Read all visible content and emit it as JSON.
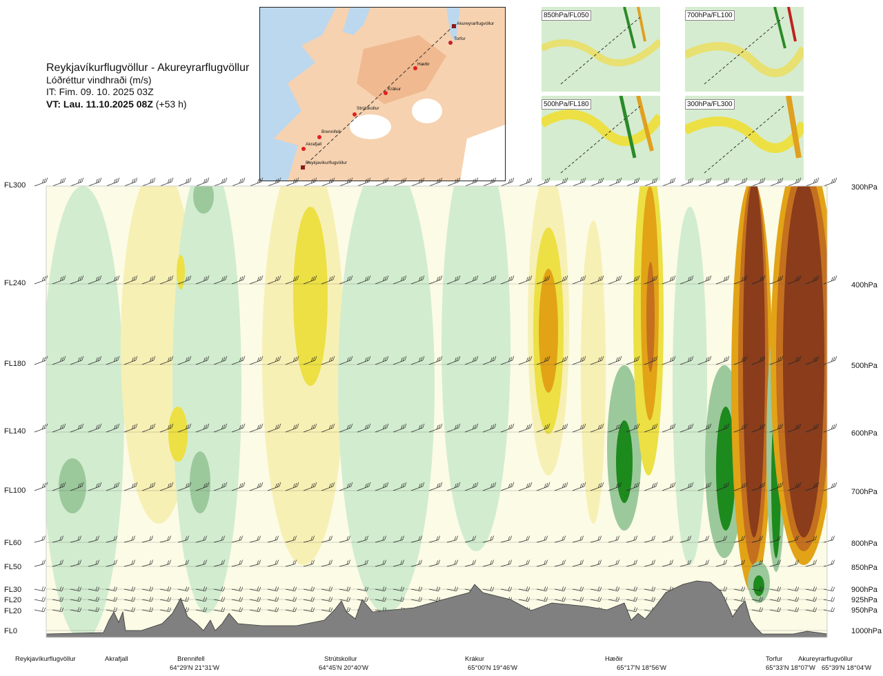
{
  "header": {
    "title": "Reykjavíkurflugvöllur - Akureyrarflugvöllur",
    "variable": "Lóðréttur vindhraði (m/s)",
    "issue_time": "IT: Fim. 09. 10. 2025 03Z",
    "valid_time": "VT: Lau. 11.10.2025 08Z",
    "lead": "(+53 h)"
  },
  "map": {
    "places": [
      "Akureyrarflugvöllur",
      "Torfur",
      "Hæðir",
      "Krákur",
      "Strútskollur",
      "Brennifell",
      "Akrafjall",
      "Reykjavíkurflugvöllur"
    ]
  },
  "thumbnails": [
    {
      "label": "850hPa/FL050"
    },
    {
      "label": "700hPa/FL100"
    },
    {
      "label": "500hPa/FL180"
    },
    {
      "label": "300hPa/FL300"
    }
  ],
  "chart_data": {
    "type": "heatmap",
    "title": "Reykjavíkurflugvöllur - Akureyrarflugvöllur",
    "variable": "Lóðréttur vindhraði (m/s)",
    "y_left_labels": [
      "FL300",
      "FL240",
      "FL180",
      "FL140",
      "FL100",
      "FL60",
      "FL50",
      "FL30",
      "FL20",
      "FL20",
      "FL0"
    ],
    "y_right_labels": [
      "300hPa",
      "400hPa",
      "500hPa",
      "600hPa",
      "700hPa",
      "800hPa",
      "850hPa",
      "900hPa",
      "925hPa",
      "950hPa",
      "1000hPa"
    ],
    "x_locations": [
      {
        "name": "Reykjavíkurflugvöllur",
        "coord": ""
      },
      {
        "name": "Akrafjall",
        "coord": ""
      },
      {
        "name": "Brennifell",
        "coord": "64°29'N 21°31'W"
      },
      {
        "name": "Strútskollur",
        "coord": "64°45'N 20°40'W"
      },
      {
        "name": "Krákur",
        "coord": "65°00'N 19°46'W"
      },
      {
        "name": "Hæðir",
        "coord": "65°17'N 18°56'W"
      },
      {
        "name": "Torfur",
        "coord": "65°33'N 18°07'W"
      },
      {
        "name": "Akureyrarflugvöllur",
        "coord": "65°39'N 18°04'W"
      }
    ],
    "colors": {
      "strong_down": "#1d8a1d",
      "down": "#9cc99b",
      "weak_down": "#d2ecd0",
      "neutral": "#fbfbe6",
      "weak_up": "#f7f0b4",
      "up": "#ece044",
      "strong_up": "#e2a317",
      "very_strong_up": "#c4701f",
      "extreme_up": "#8a3c1b",
      "terrain": "#808080"
    }
  }
}
